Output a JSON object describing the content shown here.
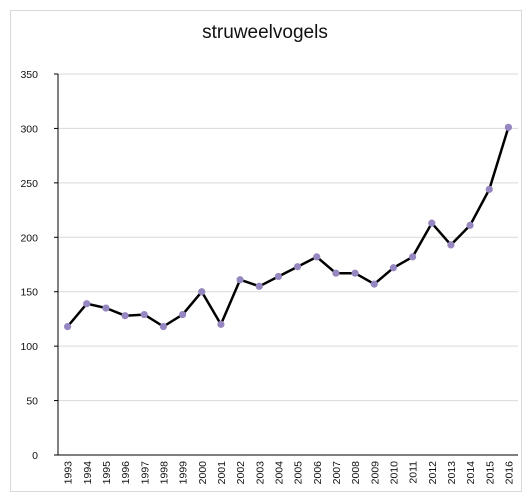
{
  "chart_data": {
    "type": "line",
    "title": "struweelvogels",
    "xlabel": "",
    "ylabel": "",
    "x": [
      "1993",
      "1994",
      "1995",
      "1996",
      "1997",
      "1998",
      "1999",
      "2000",
      "2001",
      "2002",
      "2003",
      "2004",
      "2005",
      "2006",
      "2007",
      "2008",
      "2009",
      "2010",
      "2011",
      "2012",
      "2013",
      "2014",
      "2015",
      "2016"
    ],
    "series": [
      {
        "values": [
          118,
          139,
          135,
          128,
          129,
          118,
          129,
          150,
          120,
          161,
          155,
          164,
          173,
          182,
          167,
          167,
          157,
          172,
          182,
          213,
          193,
          211,
          244,
          301
        ]
      }
    ],
    "ylim": [
      0,
      350
    ],
    "yticks": [
      0,
      50,
      100,
      150,
      200,
      250,
      300,
      350
    ],
    "grid": true,
    "legend": "none",
    "colors": {
      "line": "#000000",
      "marker": "#9787c0",
      "grid": "#d9d9d9"
    }
  }
}
